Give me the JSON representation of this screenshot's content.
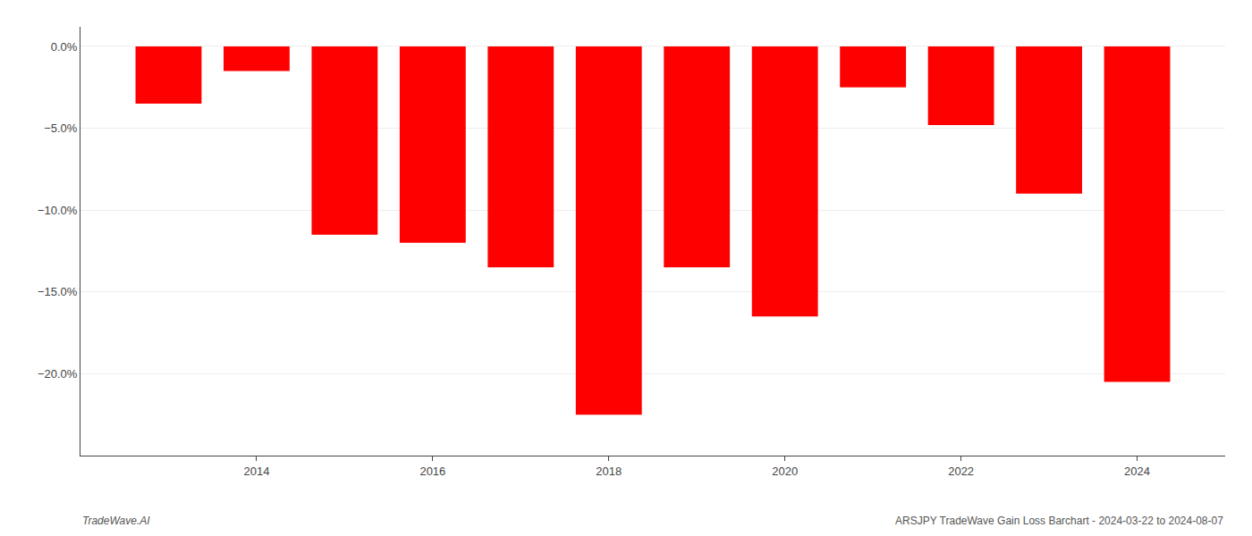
{
  "chart_data": {
    "type": "bar",
    "x": [
      2013,
      2014,
      2015,
      2016,
      2017,
      2018,
      2019,
      2020,
      2021,
      2022,
      2023,
      2024
    ],
    "values": [
      -3.5,
      -1.5,
      -11.5,
      -12.0,
      -13.5,
      -22.5,
      -13.5,
      -16.5,
      -2.5,
      -4.8,
      -9.0,
      -20.5
    ],
    "color": "#ff0000",
    "xlim": [
      2012,
      2025
    ],
    "xticks": [
      2014,
      2016,
      2018,
      2020,
      2022,
      2024
    ],
    "ylim": [
      -25,
      1.2
    ],
    "yticks": [
      {
        "value": 0.0,
        "label": "0.0%"
      },
      {
        "value": -5.0,
        "label": "−5.0%"
      },
      {
        "value": -10.0,
        "label": "−10.0%"
      },
      {
        "value": -15.0,
        "label": "−15.0%"
      },
      {
        "value": -20.0,
        "label": "−20.0%"
      }
    ],
    "grid": true,
    "annotations": [
      "TradeWave.AI",
      "ARSJPY TradeWave Gain Loss Barchart - 2024-03-22 to 2024-08-07"
    ]
  }
}
